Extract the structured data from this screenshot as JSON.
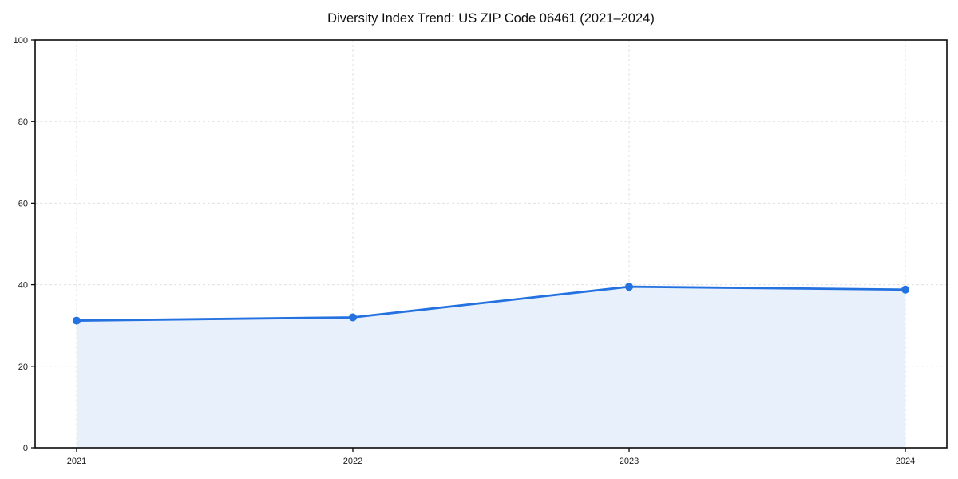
{
  "chart_data": {
    "type": "area",
    "title": "Diversity Index Trend: US ZIP Code 06461 (2021–2024)",
    "series_name": "Diversity Index",
    "categories": [
      "2021",
      "2022",
      "2023",
      "2024"
    ],
    "values": [
      31.2,
      32.0,
      39.5,
      38.8
    ],
    "xlabel": "",
    "ylabel": "",
    "ylim": [
      0,
      100
    ],
    "yticks": [
      0,
      20,
      40,
      60,
      80,
      100
    ],
    "grid": "dashed",
    "legend": "none",
    "line_color": "#2471e0",
    "fill_color": "#e8f0fc",
    "marker": "circle",
    "background": "#ffffff"
  }
}
